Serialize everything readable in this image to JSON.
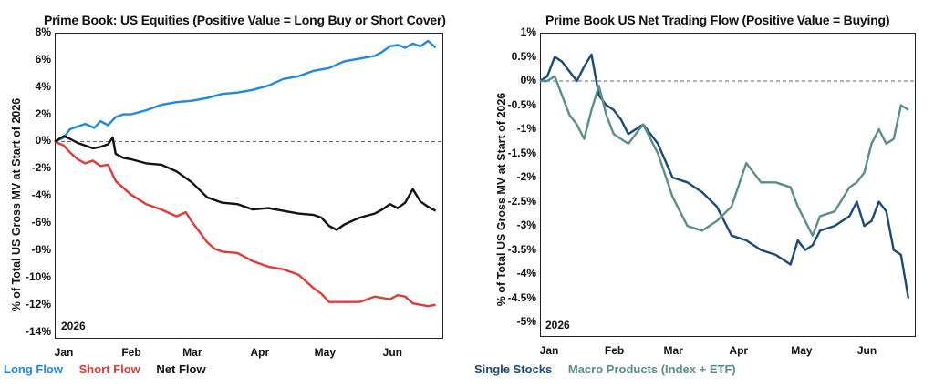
{
  "chart_data": [
    {
      "type": "line",
      "title": "Prime Book: US Equities (Positive Value = Long Buy or Short Cover)",
      "ylabel": "% of Total US Gross MV at Start of 2026",
      "xlabel": "",
      "year_label": "2026",
      "x_ticks": [
        "Jan",
        "Feb",
        "Mar",
        "Apr",
        "May",
        "Jun"
      ],
      "y_ticks": [
        "8%",
        "6%",
        "4%",
        "2%",
        "0%",
        "-2%",
        "-4%",
        "-6%",
        "-8%",
        "-10%",
        "-12%",
        "-14%"
      ],
      "ylim": [
        -14.5,
        8
      ],
      "x_unit": "week",
      "xlim": [
        0,
        25.5
      ],
      "zero_line": "dashed",
      "series": [
        {
          "name": "Long Flow",
          "color": "#1e88e5",
          "x": [
            0,
            0.6,
            1,
            1.5,
            2,
            2.6,
            3,
            3.5,
            4,
            4.5,
            5,
            6,
            7,
            8,
            9,
            10,
            11,
            12,
            13,
            14,
            15,
            16,
            17,
            18,
            19,
            20,
            21,
            21.5,
            22,
            22.5,
            23,
            23.5,
            24,
            24.5,
            25
          ],
          "values": [
            0,
            0.3,
            0.9,
            1.1,
            1.3,
            1.0,
            1.5,
            1.2,
            1.8,
            2.0,
            2.0,
            2.3,
            2.7,
            2.9,
            3.0,
            3.2,
            3.5,
            3.6,
            3.8,
            4.1,
            4.6,
            4.8,
            5.2,
            5.4,
            5.9,
            6.1,
            6.3,
            6.6,
            7.0,
            7.1,
            6.9,
            7.2,
            7.0,
            7.4,
            6.9
          ]
        },
        {
          "name": "Short Flow",
          "color": "#e53935",
          "x": [
            0,
            0.6,
            1,
            1.5,
            2,
            2.5,
            3,
            3.5,
            4,
            5,
            6,
            7,
            8,
            8.6,
            9,
            10,
            10.5,
            11,
            12,
            13,
            14,
            15,
            16,
            17,
            17.5,
            18,
            19,
            20,
            21,
            22,
            22.5,
            23,
            23.5,
            24,
            24.5,
            25
          ],
          "values": [
            0,
            -0.3,
            -0.8,
            -1.3,
            -1.6,
            -1.4,
            -1.8,
            -1.7,
            -2.9,
            -3.9,
            -4.6,
            -5.0,
            -5.5,
            -5.2,
            -5.9,
            -7.4,
            -7.9,
            -8.1,
            -8.2,
            -8.8,
            -9.2,
            -9.4,
            -9.8,
            -10.8,
            -11.2,
            -11.8,
            -11.8,
            -11.8,
            -11.4,
            -11.6,
            -11.3,
            -11.4,
            -11.9,
            -12.0,
            -12.1,
            -12.0
          ]
        },
        {
          "name": "Net Flow",
          "color": "#111111",
          "x": [
            0,
            0.6,
            1,
            1.5,
            2,
            2.5,
            3,
            3.5,
            3.8,
            4,
            4.5,
            5,
            6,
            7,
            8,
            9,
            10,
            11,
            12,
            13,
            14,
            15,
            16,
            17,
            17.5,
            18,
            18.5,
            19,
            20,
            21,
            21.5,
            22,
            22.5,
            23,
            23.5,
            24,
            24.5,
            25
          ],
          "values": [
            0,
            0.4,
            0.2,
            -0.1,
            -0.3,
            -0.5,
            -0.4,
            -0.2,
            0.3,
            -0.9,
            -1.2,
            -1.3,
            -1.6,
            -1.7,
            -2.2,
            -3.0,
            -4.1,
            -4.5,
            -4.6,
            -5.0,
            -4.9,
            -5.1,
            -5.3,
            -5.4,
            -5.6,
            -6.2,
            -6.5,
            -6.1,
            -5.6,
            -5.3,
            -5.0,
            -4.6,
            -4.9,
            -4.5,
            -3.5,
            -4.4,
            -4.8,
            -5.1
          ]
        }
      ],
      "legend": "bottom-left"
    },
    {
      "type": "line",
      "title": "Prime Book US Net Trading Flow (Positive Value = Buying)",
      "ylabel": "% of Total US Gross MV at Start of 2026",
      "xlabel": "",
      "year_label": "2026",
      "x_ticks": [
        "Jan",
        "Feb",
        "Mar",
        "Apr",
        "May",
        "Jun"
      ],
      "y_ticks": [
        "1%",
        "0.5%",
        "0%",
        "-0.5%",
        "-1%",
        "-1.5%",
        "-2%",
        "-2.5%",
        "-3%",
        "-3.5%",
        "-4%",
        "-4.5%",
        "-5%"
      ],
      "ylim": [
        -5.3,
        1
      ],
      "x_unit": "week",
      "xlim": [
        0,
        25.5
      ],
      "zero_line": "dashed",
      "series": [
        {
          "name": "Single Stocks",
          "color": "#1a4a7a",
          "x": [
            0,
            0.5,
            1,
            1.5,
            2,
            2.5,
            3,
            3.5,
            4,
            4.5,
            5,
            5.5,
            6,
            7,
            8,
            9,
            10,
            11,
            12,
            13,
            14,
            15,
            16,
            17,
            17.5,
            18,
            18.5,
            19,
            20,
            21,
            21.5,
            22,
            22.5,
            23,
            23.5,
            24,
            24.5,
            25
          ],
          "values": [
            0,
            0.1,
            0.5,
            0.4,
            0.2,
            0.0,
            0.3,
            0.55,
            -0.3,
            -0.5,
            -0.6,
            -0.8,
            -1.1,
            -0.9,
            -1.3,
            -2.0,
            -2.1,
            -2.3,
            -2.6,
            -3.2,
            -3.3,
            -3.5,
            -3.6,
            -3.8,
            -3.3,
            -3.5,
            -3.4,
            -3.1,
            -3.0,
            -2.8,
            -2.5,
            -3.0,
            -2.9,
            -2.5,
            -2.7,
            -3.5,
            -3.6,
            -4.5
          ]
        },
        {
          "name": "Macro Products (Index + ETF)",
          "color": "#5a8f88",
          "x": [
            0,
            0.5,
            1,
            1.5,
            2,
            2.5,
            3,
            3.5,
            4,
            4.5,
            5,
            5.5,
            6,
            7,
            8,
            9,
            10,
            11,
            12,
            13,
            14,
            15,
            16,
            17,
            17.5,
            18,
            18.5,
            19,
            20,
            21,
            21.5,
            22,
            22.5,
            23,
            23.5,
            24,
            24.5,
            25
          ],
          "values": [
            0,
            0.0,
            0.1,
            -0.3,
            -0.7,
            -0.9,
            -1.2,
            -0.6,
            -0.1,
            -0.7,
            -1.1,
            -1.2,
            -1.3,
            -0.9,
            -1.5,
            -2.4,
            -3.0,
            -3.1,
            -2.9,
            -2.6,
            -1.7,
            -2.1,
            -2.1,
            -2.2,
            -2.6,
            -2.9,
            -3.2,
            -2.8,
            -2.7,
            -2.2,
            -2.1,
            -1.9,
            -1.3,
            -1.0,
            -1.3,
            -1.2,
            -0.5,
            -0.6
          ]
        }
      ],
      "legend": "bottom-left"
    }
  ]
}
